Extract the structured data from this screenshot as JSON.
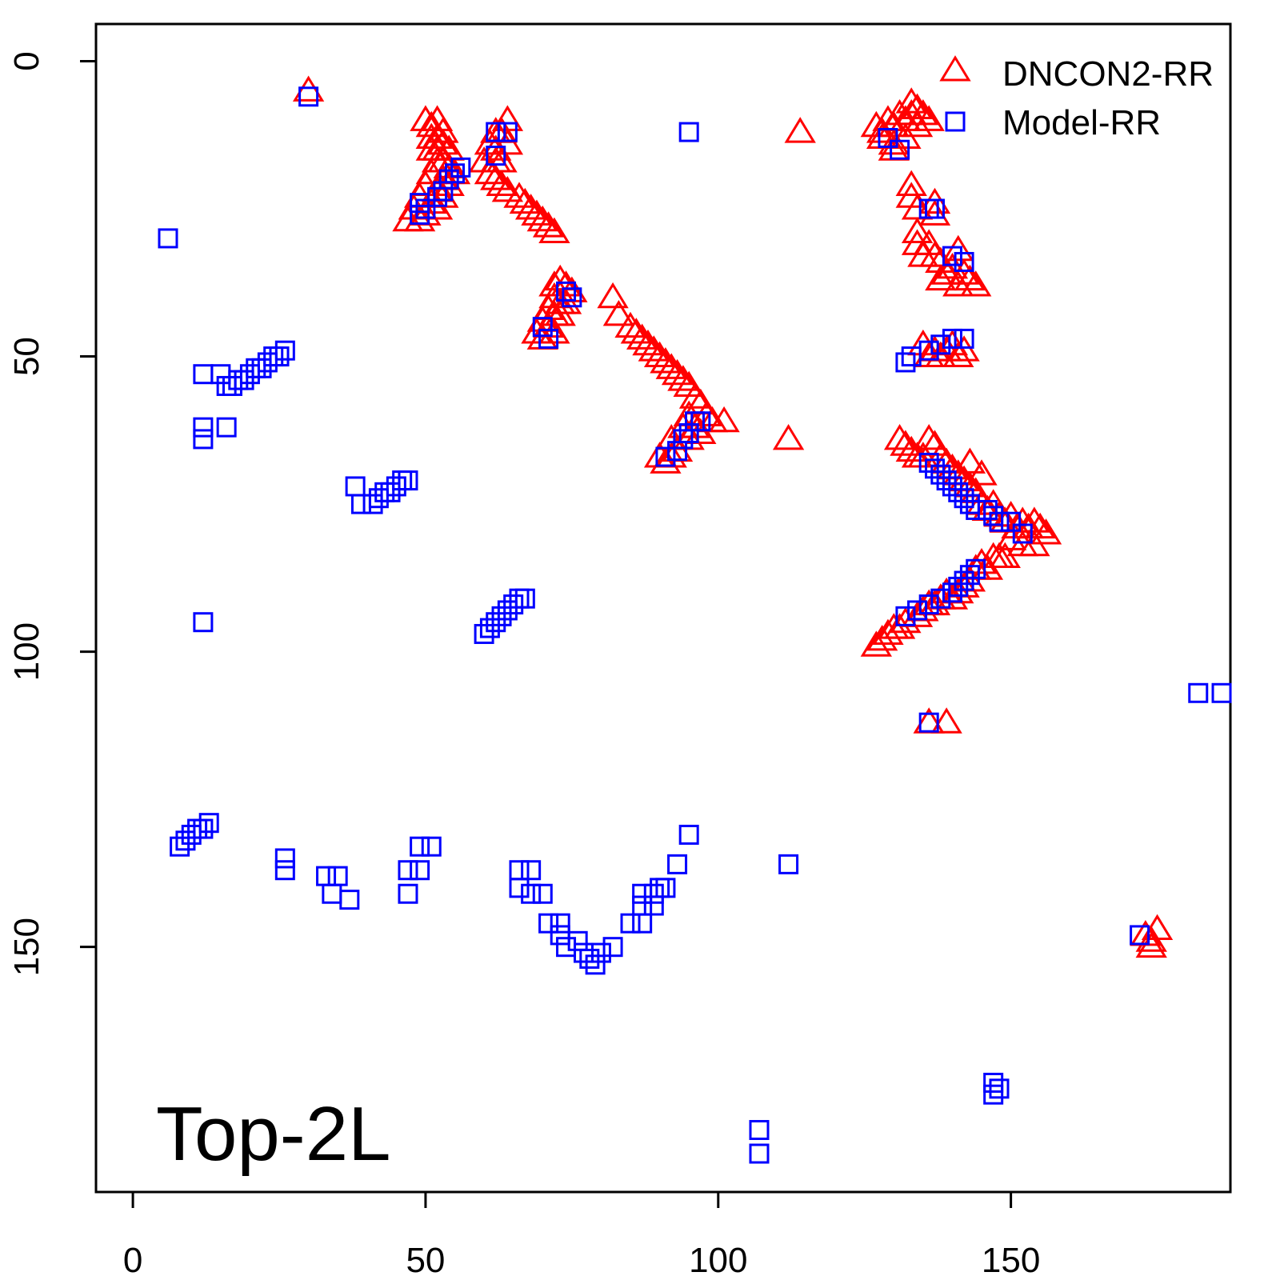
{
  "chart_data": {
    "type": "scatter",
    "title": "",
    "xlabel": "",
    "ylabel": "",
    "panel_label": "Top-2L",
    "xlim": [
      -6.3,
      187.5
    ],
    "ylim": [
      -6.3,
      191.5
    ],
    "y_reversed": true,
    "x_ticks": [
      0,
      50,
      100,
      150
    ],
    "y_ticks": [
      0,
      50,
      100,
      150
    ],
    "legend": {
      "position": "top-right"
    },
    "series": [
      {
        "name": "DNCON2-RR",
        "marker": "triangle",
        "color": "#ff0000",
        "points": [
          [
            30,
            5
          ],
          [
            50,
            10
          ],
          [
            51,
            11
          ],
          [
            52,
            10
          ],
          [
            51,
            13
          ],
          [
            52,
            13
          ],
          [
            53,
            12
          ],
          [
            51,
            15
          ],
          [
            52,
            15
          ],
          [
            53,
            14
          ],
          [
            54,
            15
          ],
          [
            52,
            17
          ],
          [
            53,
            17
          ],
          [
            54,
            18
          ],
          [
            51,
            19
          ],
          [
            53,
            20
          ],
          [
            55,
            19
          ],
          [
            50,
            21
          ],
          [
            52,
            22
          ],
          [
            54,
            21
          ],
          [
            49,
            23
          ],
          [
            51,
            24
          ],
          [
            53,
            23
          ],
          [
            48,
            25
          ],
          [
            50,
            26
          ],
          [
            52,
            25
          ],
          [
            47,
            27
          ],
          [
            49,
            27
          ],
          [
            62,
            12
          ],
          [
            63,
            12
          ],
          [
            64,
            10
          ],
          [
            61,
            14
          ],
          [
            62,
            15
          ],
          [
            64,
            14
          ],
          [
            60,
            17
          ],
          [
            62,
            17
          ],
          [
            63,
            17
          ],
          [
            61,
            19
          ],
          [
            62,
            20
          ],
          [
            63,
            21
          ],
          [
            64,
            22
          ],
          [
            66,
            23
          ],
          [
            67,
            24
          ],
          [
            68,
            25
          ],
          [
            69,
            26
          ],
          [
            70,
            27
          ],
          [
            71,
            28
          ],
          [
            72,
            29
          ],
          [
            72,
            38
          ],
          [
            73,
            37
          ],
          [
            74,
            38
          ],
          [
            75,
            39
          ],
          [
            72,
            40
          ],
          [
            73,
            41
          ],
          [
            74,
            41
          ],
          [
            71,
            42
          ],
          [
            72,
            43
          ],
          [
            73,
            43
          ],
          [
            70,
            44
          ],
          [
            71,
            45
          ],
          [
            72,
            46
          ],
          [
            69,
            46
          ],
          [
            70,
            47
          ],
          [
            82,
            40
          ],
          [
            83,
            43
          ],
          [
            85,
            45
          ],
          [
            86,
            46
          ],
          [
            87,
            47
          ],
          [
            88,
            48
          ],
          [
            89,
            49
          ],
          [
            90,
            50
          ],
          [
            91,
            51
          ],
          [
            92,
            52
          ],
          [
            93,
            53
          ],
          [
            94,
            54
          ],
          [
            95,
            55
          ],
          [
            96,
            57
          ],
          [
            97,
            58
          ],
          [
            98,
            60
          ],
          [
            99,
            61
          ],
          [
            101,
            61
          ],
          [
            95,
            60
          ],
          [
            96,
            62
          ],
          [
            97,
            63
          ],
          [
            94,
            62
          ],
          [
            95,
            64
          ],
          [
            92,
            64
          ],
          [
            93,
            66
          ],
          [
            90,
            67
          ],
          [
            92,
            67
          ],
          [
            91,
            68
          ],
          [
            114,
            12
          ],
          [
            112,
            64
          ],
          [
            127,
            11
          ],
          [
            128,
            12
          ],
          [
            129,
            10
          ],
          [
            130,
            11
          ],
          [
            130,
            14
          ],
          [
            131,
            9
          ],
          [
            132,
            10
          ],
          [
            132,
            13
          ],
          [
            133,
            7
          ],
          [
            133,
            9
          ],
          [
            134,
            8
          ],
          [
            134,
            11
          ],
          [
            135,
            9
          ],
          [
            136,
            10
          ],
          [
            128,
            13
          ],
          [
            130,
            15
          ],
          [
            133,
            21
          ],
          [
            133,
            23
          ],
          [
            134,
            25
          ],
          [
            134,
            29
          ],
          [
            134,
            31
          ],
          [
            135,
            33
          ],
          [
            136,
            31
          ],
          [
            137,
            33
          ],
          [
            137,
            24
          ],
          [
            137,
            26
          ],
          [
            138,
            34
          ],
          [
            139,
            36
          ],
          [
            138,
            37
          ],
          [
            140,
            35
          ],
          [
            141,
            32
          ],
          [
            142,
            36
          ],
          [
            141,
            38
          ],
          [
            143,
            37
          ],
          [
            144,
            38
          ],
          [
            135,
            48
          ],
          [
            136,
            50
          ],
          [
            137,
            49
          ],
          [
            138,
            50
          ],
          [
            139,
            49
          ],
          [
            140,
            48
          ],
          [
            141,
            50
          ],
          [
            142,
            49
          ],
          [
            131,
            64
          ],
          [
            132,
            65
          ],
          [
            133,
            66
          ],
          [
            134,
            67
          ],
          [
            135,
            67
          ],
          [
            136,
            64
          ],
          [
            137,
            65
          ],
          [
            138,
            67
          ],
          [
            139,
            68
          ],
          [
            140,
            69
          ],
          [
            141,
            70
          ],
          [
            142,
            71
          ],
          [
            143,
            72
          ],
          [
            144,
            73
          ],
          [
            143,
            68
          ],
          [
            145,
            70
          ],
          [
            145,
            75
          ],
          [
            146,
            76
          ],
          [
            147,
            75
          ],
          [
            148,
            77
          ],
          [
            149,
            78
          ],
          [
            150,
            77
          ],
          [
            151,
            79
          ],
          [
            152,
            78
          ],
          [
            153,
            79
          ],
          [
            154,
            78
          ],
          [
            155,
            79
          ],
          [
            156,
            80
          ],
          [
            150,
            81
          ],
          [
            152,
            82
          ],
          [
            154,
            82
          ],
          [
            144,
            86
          ],
          [
            145,
            85
          ],
          [
            146,
            86
          ],
          [
            147,
            84
          ],
          [
            148,
            84
          ],
          [
            149,
            84
          ],
          [
            143,
            88
          ],
          [
            142,
            89
          ],
          [
            141,
            90
          ],
          [
            140,
            91
          ],
          [
            139,
            90
          ],
          [
            138,
            91
          ],
          [
            137,
            92
          ],
          [
            136,
            92
          ],
          [
            135,
            93
          ],
          [
            134,
            94
          ],
          [
            132,
            95
          ],
          [
            131,
            96
          ],
          [
            130,
            96
          ],
          [
            129,
            97
          ],
          [
            128,
            98
          ],
          [
            127,
            99
          ],
          [
            136,
            112
          ],
          [
            139,
            112
          ],
          [
            173,
            148
          ],
          [
            174,
            149
          ],
          [
            175,
            147
          ],
          [
            174,
            150
          ]
        ]
      },
      {
        "name": "Model-RR",
        "marker": "square",
        "color": "#0000ff",
        "points": [
          [
            30,
            6
          ],
          [
            95,
            12
          ],
          [
            62,
            12
          ],
          [
            64,
            12
          ],
          [
            62,
            16
          ],
          [
            49,
            24
          ],
          [
            50,
            25
          ],
          [
            49,
            26
          ],
          [
            52,
            23
          ],
          [
            53,
            22
          ],
          [
            54,
            20
          ],
          [
            55,
            19
          ],
          [
            56,
            18
          ],
          [
            6,
            30
          ],
          [
            129,
            13
          ],
          [
            131,
            15
          ],
          [
            74,
            39
          ],
          [
            75,
            40
          ],
          [
            70,
            45
          ],
          [
            71,
            47
          ],
          [
            136,
            25
          ],
          [
            137,
            25
          ],
          [
            140,
            33
          ],
          [
            142,
            34
          ],
          [
            138,
            48
          ],
          [
            136,
            49
          ],
          [
            140,
            47
          ],
          [
            142,
            47
          ],
          [
            133,
            50
          ],
          [
            132,
            51
          ],
          [
            91,
            67
          ],
          [
            93,
            66
          ],
          [
            94,
            64
          ],
          [
            95,
            63
          ],
          [
            96,
            61
          ],
          [
            97,
            61
          ],
          [
            26,
            49
          ],
          [
            25,
            50
          ],
          [
            24,
            50
          ],
          [
            23,
            51
          ],
          [
            22,
            52
          ],
          [
            21,
            52
          ],
          [
            20,
            53
          ],
          [
            19,
            54
          ],
          [
            18,
            54
          ],
          [
            17,
            55
          ],
          [
            16,
            55
          ],
          [
            15,
            53
          ],
          [
            12,
            53
          ],
          [
            12,
            62
          ],
          [
            16,
            62
          ],
          [
            12,
            64
          ],
          [
            38,
            72
          ],
          [
            39,
            75
          ],
          [
            41,
            75
          ],
          [
            42,
            74
          ],
          [
            43,
            73
          ],
          [
            44,
            73
          ],
          [
            45,
            72
          ],
          [
            46,
            71
          ],
          [
            47,
            71
          ],
          [
            60,
            97
          ],
          [
            61,
            96
          ],
          [
            62,
            95
          ],
          [
            63,
            94
          ],
          [
            64,
            93
          ],
          [
            65,
            92
          ],
          [
            66,
            91
          ],
          [
            67,
            91
          ],
          [
            12,
            95
          ],
          [
            136,
            68
          ],
          [
            137,
            69
          ],
          [
            138,
            70
          ],
          [
            139,
            71
          ],
          [
            140,
            72
          ],
          [
            141,
            73
          ],
          [
            142,
            74
          ],
          [
            143,
            75
          ],
          [
            144,
            76
          ],
          [
            146,
            76
          ],
          [
            147,
            77
          ],
          [
            148,
            78
          ],
          [
            150,
            78
          ],
          [
            152,
            80
          ],
          [
            144,
            86
          ],
          [
            143,
            87
          ],
          [
            142,
            88
          ],
          [
            141,
            89
          ],
          [
            140,
            90
          ],
          [
            138,
            91
          ],
          [
            136,
            92
          ],
          [
            134,
            93
          ],
          [
            132,
            94
          ],
          [
            136,
            112
          ],
          [
            182,
            107
          ],
          [
            186,
            107
          ],
          [
            8,
            133
          ],
          [
            9,
            132
          ],
          [
            10,
            131
          ],
          [
            11,
            130
          ],
          [
            12,
            130
          ],
          [
            13,
            129
          ],
          [
            26,
            135
          ],
          [
            26,
            137
          ],
          [
            33,
            138
          ],
          [
            35,
            138
          ],
          [
            34,
            141
          ],
          [
            37,
            142
          ],
          [
            47,
            137
          ],
          [
            49,
            137
          ],
          [
            47,
            141
          ],
          [
            49,
            133
          ],
          [
            51,
            133
          ],
          [
            66,
            137
          ],
          [
            68,
            137
          ],
          [
            66,
            140
          ],
          [
            68,
            141
          ],
          [
            70,
            141
          ],
          [
            71,
            146
          ],
          [
            73,
            146
          ],
          [
            73,
            148
          ],
          [
            74,
            150
          ],
          [
            76,
            149
          ],
          [
            77,
            151
          ],
          [
            78,
            152
          ],
          [
            79,
            153
          ],
          [
            80,
            151
          ],
          [
            82,
            150
          ],
          [
            85,
            146
          ],
          [
            87,
            146
          ],
          [
            87,
            143
          ],
          [
            87,
            141
          ],
          [
            89,
            143
          ],
          [
            89,
            141
          ],
          [
            90,
            140
          ],
          [
            91,
            140
          ],
          [
            93,
            136
          ],
          [
            95,
            131
          ],
          [
            112,
            136
          ],
          [
            172,
            148
          ],
          [
            147,
            173
          ],
          [
            148,
            174
          ],
          [
            147,
            175
          ],
          [
            107,
            181
          ],
          [
            107,
            185
          ]
        ]
      }
    ]
  }
}
